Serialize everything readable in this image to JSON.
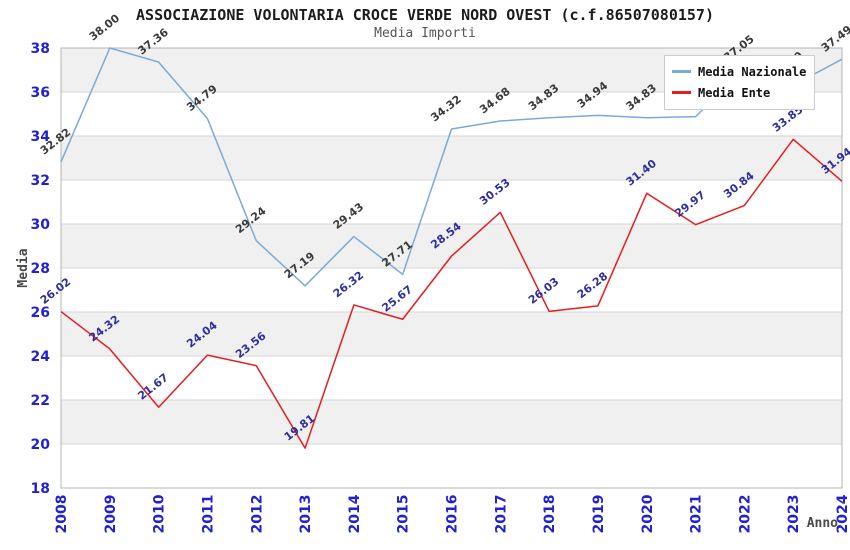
{
  "header": {
    "title": "ASSOCIAZIONE VOLONTARIA CROCE VERDE NORD OVEST (c.f.86507080157)",
    "subtitle": "Media Importi"
  },
  "legend": {
    "items": [
      {
        "label": "Media Nazionale",
        "color": "#79aad9"
      },
      {
        "label": "Media Ente",
        "color": "#e51d1d"
      }
    ]
  },
  "chart_data": {
    "type": "line",
    "title": "ASSOCIAZIONE VOLONTARIA CROCE VERDE NORD OVEST (c.f.86507080157)",
    "subtitle": "Media Importi",
    "xlabel": "Anno",
    "ylabel": "Media",
    "x": [
      2008,
      2009,
      2010,
      2011,
      2012,
      2013,
      2014,
      2015,
      2016,
      2017,
      2018,
      2019,
      2020,
      2021,
      2022,
      2023,
      2024
    ],
    "series": [
      {
        "name": "Media Nazionale",
        "color": "#79aad9",
        "label_color": "#3a3a3a",
        "values": [
          32.82,
          38,
          37.36,
          34.79,
          29.24,
          27.19,
          29.43,
          27.71,
          34.32,
          34.68,
          34.83,
          34.94,
          34.83,
          34.88,
          37.05,
          36.3,
          37.49
        ]
      },
      {
        "name": "Media Ente",
        "color": "#e51d1d",
        "label_color": "#2e2e9e",
        "values": [
          26.02,
          24.32,
          21.67,
          24.04,
          23.56,
          19.81,
          26.32,
          25.67,
          28.54,
          30.53,
          26.03,
          26.28,
          31.4,
          29.97,
          30.84,
          33.85,
          31.94
        ]
      }
    ],
    "ylim": [
      18,
      38
    ],
    "y_ticks": [
      38,
      36,
      34,
      32,
      30,
      28,
      26,
      24,
      22,
      20,
      18
    ],
    "grid": true,
    "band_colors": [
      "#f0f0f0",
      "#ffffff"
    ],
    "grid_color": "#d6d6d6",
    "border_color": "#b5b5b5",
    "tick_color": "#2121cd",
    "axis_title_color": "#4a4a4a",
    "legend_position": "top-right"
  }
}
